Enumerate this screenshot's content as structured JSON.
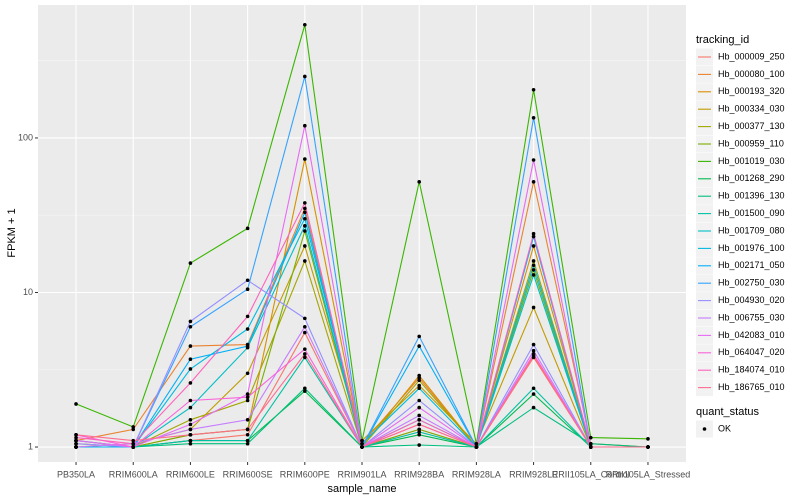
{
  "chart_data": {
    "type": "line",
    "x_label": "sample_name",
    "y_label": "FPKM + 1",
    "log_y": true,
    "grid": true,
    "legend_title": "tracking_id",
    "status_legend_title": "quant_status",
    "status_values": [
      "OK"
    ],
    "point_color": "#000000",
    "categories": [
      "PB350LA",
      "RRIM600LA",
      "RRIM600LE",
      "RRIM600SE",
      "RRIM600PE",
      "RRIM901LA",
      "RRIM928BA",
      "RRIM928LA",
      "RRIM928LE",
      "RRII105LA_Control",
      "RRII105LA_Stressed"
    ],
    "ylim": [
      0.8,
      725
    ],
    "yticks": [
      1,
      10,
      100
    ],
    "series": [
      {
        "name": "Hb_000009_250",
        "color": "#F8766D",
        "values": [
          1.0,
          1.0,
          1.1,
          1.2,
          5.5,
          1.0,
          1.3,
          1.0,
          3.8,
          1.0,
          1.0
        ]
      },
      {
        "name": "Hb_000080_100",
        "color": "#EA8331",
        "values": [
          1.1,
          1.3,
          4.5,
          4.6,
          35,
          1.05,
          2.8,
          1.0,
          52,
          1.05,
          1.0
        ]
      },
      {
        "name": "Hb_000193_320",
        "color": "#D89000",
        "values": [
          1.05,
          1.0,
          1.2,
          1.3,
          73,
          1.0,
          2.9,
          1.0,
          20,
          1.0,
          1.0
        ]
      },
      {
        "name": "Hb_000334_030",
        "color": "#C09B00",
        "values": [
          1.0,
          1.05,
          1.3,
          3.0,
          20,
          1.1,
          2.5,
          1.05,
          8,
          1.0,
          1.0
        ]
      },
      {
        "name": "Hb_000377_130",
        "color": "#A3A500",
        "values": [
          1.0,
          1.0,
          1.5,
          2.0,
          16,
          1.0,
          2.7,
          1.0,
          16,
          1.0,
          1.0
        ]
      },
      {
        "name": "Hb_000959_110",
        "color": "#7CAE00",
        "values": [
          1.1,
          1.0,
          1.2,
          1.3,
          25,
          1.0,
          1.3,
          1.0,
          14,
          1.0,
          1.0
        ]
      },
      {
        "name": "Hb_001019_030",
        "color": "#39B600",
        "values": [
          1.9,
          1.35,
          15.5,
          26,
          540,
          1.1,
          52,
          1.05,
          205,
          1.15,
          1.13
        ]
      },
      {
        "name": "Hb_001268_290",
        "color": "#00BB4E",
        "values": [
          1.0,
          1.0,
          1.1,
          1.1,
          2.3,
          1.0,
          1.2,
          1.0,
          2.2,
          1.0,
          1.0
        ]
      },
      {
        "name": "Hb_001396_130",
        "color": "#00BF7D",
        "values": [
          1.0,
          1.0,
          1.05,
          1.05,
          2.4,
          1.0,
          1.03,
          1.0,
          1.8,
          1.05,
          1.0
        ]
      },
      {
        "name": "Hb_001500_090",
        "color": "#00C1A3",
        "values": [
          1.0,
          1.0,
          1.1,
          1.1,
          3.8,
          1.0,
          1.25,
          1.0,
          2.4,
          1.0,
          1.0
        ]
      },
      {
        "name": "Hb_001709_080",
        "color": "#00BFC4",
        "values": [
          1.0,
          1.0,
          1.8,
          4.4,
          27,
          1.0,
          1.5,
          1.0,
          13,
          1.0,
          1.0
        ]
      },
      {
        "name": "Hb_001976_100",
        "color": "#00BAE0",
        "values": [
          1.0,
          1.0,
          3.2,
          5.8,
          30,
          1.05,
          2.4,
          1.0,
          15,
          1.0,
          1.0
        ]
      },
      {
        "name": "Hb_002171_050",
        "color": "#00B0F6",
        "values": [
          1.0,
          1.0,
          3.7,
          4.5,
          33,
          1.0,
          4.5,
          1.0,
          23,
          1.0,
          1.0
        ]
      },
      {
        "name": "Hb_002750_030",
        "color": "#35A2FF",
        "values": [
          1.1,
          1.0,
          6.0,
          10.5,
          250,
          1.0,
          5.2,
          1.0,
          135,
          1.0,
          1.0
        ]
      },
      {
        "name": "Hb_004930_020",
        "color": "#9590FF",
        "values": [
          1.05,
          1.0,
          6.5,
          12,
          6.8,
          1.0,
          2.0,
          1.0,
          4.6,
          1.0,
          1.0
        ]
      },
      {
        "name": "Hb_006755_030",
        "color": "#C77CFF",
        "values": [
          1.0,
          1.05,
          1.3,
          1.5,
          6.0,
          1.0,
          1.6,
          1.0,
          4.2,
          1.0,
          1.0
        ]
      },
      {
        "name": "Hb_042083_010",
        "color": "#E76BF3",
        "values": [
          1.1,
          1.0,
          1.4,
          2.2,
          120,
          1.0,
          1.8,
          1.0,
          72,
          1.0,
          1.0
        ]
      },
      {
        "name": "Hb_064047_020",
        "color": "#FA62DB",
        "values": [
          1.2,
          1.0,
          2.0,
          2.1,
          4.3,
          1.0,
          1.4,
          1.0,
          4.0,
          1.0,
          1.0
        ]
      },
      {
        "name": "Hb_184074_010",
        "color": "#FF62BC",
        "values": [
          1.15,
          1.05,
          2.6,
          7.0,
          38,
          1.0,
          1.5,
          1.0,
          24,
          1.0,
          1.0
        ]
      },
      {
        "name": "Hb_186765_010",
        "color": "#FF6C91",
        "values": [
          1.2,
          1.1,
          1.2,
          1.3,
          4.0,
          1.0,
          1.4,
          1.0,
          3.9,
          1.0,
          1.0
        ]
      }
    ]
  }
}
